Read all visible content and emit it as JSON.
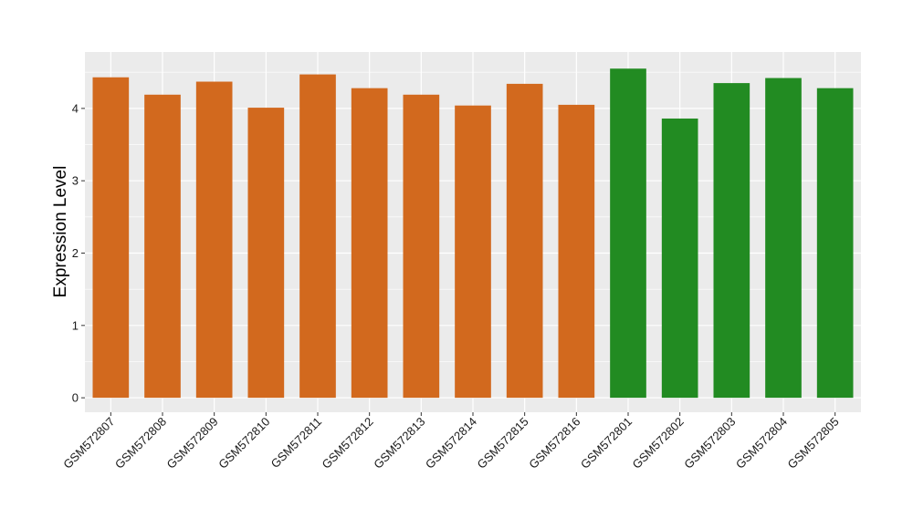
{
  "chart_data": {
    "type": "bar",
    "title": "",
    "xlabel": "",
    "ylabel": "Expression Level",
    "ylim": [
      -0.2,
      4.78
    ],
    "yticks": [
      0,
      1,
      2,
      3,
      4
    ],
    "grid": true,
    "categories": [
      "GSM572807",
      "GSM572808",
      "GSM572809",
      "GSM572810",
      "GSM572811",
      "GSM572812",
      "GSM572813",
      "GSM572814",
      "GSM572815",
      "GSM572816",
      "GSM572801",
      "GSM572802",
      "GSM572803",
      "GSM572804",
      "GSM572805"
    ],
    "values": [
      4.43,
      4.19,
      4.37,
      4.01,
      4.47,
      4.28,
      4.19,
      4.04,
      4.34,
      4.05,
      4.55,
      3.86,
      4.35,
      4.42,
      4.28
    ],
    "bar_colors": [
      "#d2691e",
      "#d2691e",
      "#d2691e",
      "#d2691e",
      "#d2691e",
      "#d2691e",
      "#d2691e",
      "#d2691e",
      "#d2691e",
      "#d2691e",
      "#228b22",
      "#228b22",
      "#228b22",
      "#228b22",
      "#228b22"
    ],
    "panel_color": "#ebebeb",
    "grid_color": "#ffffff"
  }
}
